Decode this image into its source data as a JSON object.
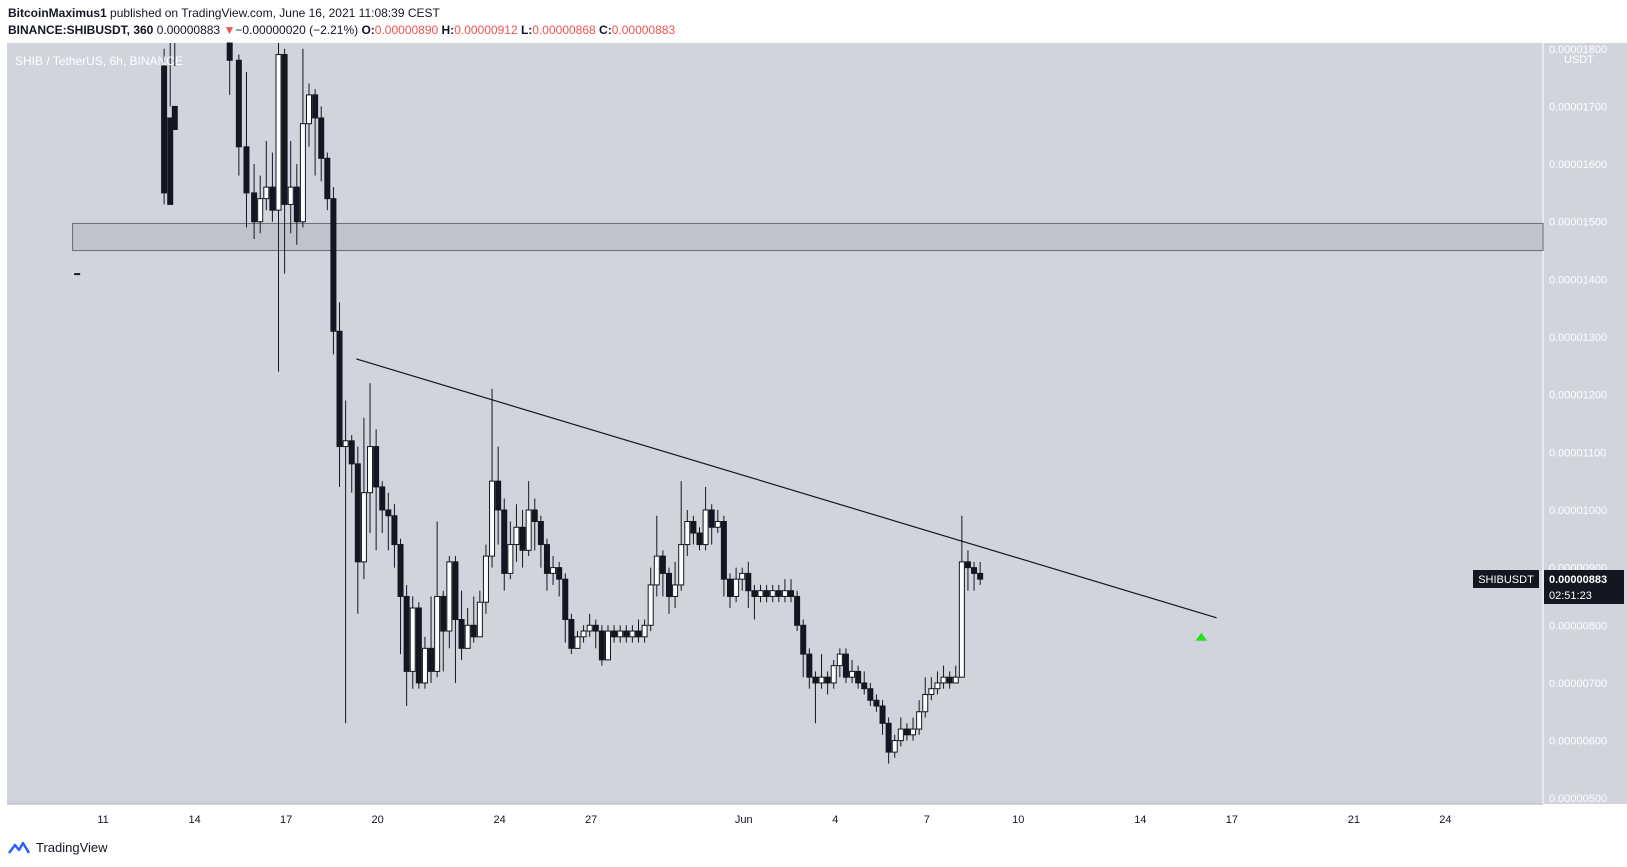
{
  "header": {
    "author": "BitcoinMaximus1",
    "published_text": "published on TradingView.com, June 16, 2021 11:08:39 CEST",
    "symbol": "BINANCE:SHIBUSDT, 360",
    "last": "0.00000883",
    "change_arrow": "▼",
    "change": "−0.00000020 (−2.21%)",
    "o_label": "O:",
    "o": "0.00000890",
    "h_label": "H:",
    "h": "0.00000912",
    "l_label": "L:",
    "l": "0.00000868",
    "c_label": "C:",
    "c": "0.00000883"
  },
  "footer": {
    "brand": "TradingView",
    "logo_icon": "tradingview-logo-icon"
  },
  "colors": {
    "background": "#d1d4dc",
    "bull": "#ffffff",
    "bear": "#131722",
    "arrow": "#26e01e",
    "accent_red": "#ef5350"
  },
  "chart_data": {
    "type": "candlestick",
    "title": "SHIB / TetherUS, 6h, BINANCE",
    "axis_unit": "USDT",
    "ylim": [
      4.9e-06,
      1.81e-05
    ],
    "y_ticks": [
      "0.00000500",
      "0.00000600",
      "0.00000700",
      "0.00000800",
      "0.00000900",
      "0.00001000",
      "0.00001100",
      "0.00001200",
      "0.00001300",
      "0.00001400",
      "0.00001500",
      "0.00001600",
      "0.00001700",
      "0.00001800"
    ],
    "x_ticks": [
      {
        "label": "11",
        "day": 11
      },
      {
        "label": "14",
        "day": 14
      },
      {
        "label": "17",
        "day": 17
      },
      {
        "label": "20",
        "day": 20
      },
      {
        "label": "24",
        "day": 24
      },
      {
        "label": "27",
        "day": 27
      },
      {
        "label": "Jun",
        "day": 32
      },
      {
        "label": "4",
        "day": 35
      },
      {
        "label": "7",
        "day": 38
      },
      {
        "label": "10",
        "day": 41
      },
      {
        "label": "14",
        "day": 45
      },
      {
        "label": "17",
        "day": 48
      },
      {
        "label": "21",
        "day": 52
      },
      {
        "label": "24",
        "day": 55
      }
    ],
    "xlim_days": [
      7.85,
      58.2
    ],
    "day_origin": "2021-05-01",
    "last_price_label": {
      "symbol": "SHIBUSDT",
      "price": "0.00000883",
      "countdown": "02:51:23"
    },
    "resistance_zone": [
      1.45e-05,
      1.497e-05
    ],
    "trendline": [
      [
        19.3,
        1.262e-05
      ],
      [
        47.5,
        8.13e-06
      ]
    ],
    "buy_arrow": [
      47.0,
      7.8e-06
    ],
    "candles": [
      [
        10.15,
        1.41e-05,
        1.41e-05,
        1.87e-05,
        1.87e-05
      ],
      [
        13.0,
        1.77e-05,
        1.55e-05,
        1.8e-05,
        1.53e-05
      ],
      [
        13.2,
        1.68e-05,
        1.53e-05,
        1.82e-05,
        1.7e-05
      ],
      [
        13.35,
        1.7e-05,
        1.66e-05,
        1.82e-05,
        1.77e-05
      ],
      [
        15.15,
        1.82e-05,
        1.78e-05,
        1.85e-05,
        1.72e-05
      ],
      [
        15.45,
        1.78e-05,
        1.63e-05,
        1.79e-05,
        1.58e-05
      ],
      [
        15.7,
        1.63e-05,
        1.55e-05,
        1.76e-05,
        1.49e-05
      ],
      [
        15.95,
        1.55e-05,
        1.5e-05,
        1.6e-05,
        1.47e-05
      ],
      [
        16.15,
        1.5e-05,
        1.54e-05,
        1.58e-05,
        1.48e-05
      ],
      [
        16.35,
        1.54e-05,
        1.56e-05,
        1.64e-05,
        1.52e-05
      ],
      [
        16.55,
        1.56e-05,
        1.52e-05,
        1.62e-05,
        1.5e-05
      ],
      [
        16.75,
        1.52e-05,
        1.79e-05,
        1.82e-05,
        1.24e-05
      ],
      [
        16.95,
        1.79e-05,
        1.53e-05,
        1.8e-05,
        1.41e-05
      ],
      [
        17.15,
        1.53e-05,
        1.56e-05,
        1.64e-05,
        1.48e-05
      ],
      [
        17.35,
        1.56e-05,
        1.5e-05,
        1.6e-05,
        1.46e-05
      ],
      [
        17.55,
        1.5e-05,
        1.67e-05,
        1.8e-05,
        1.49e-05
      ],
      [
        17.75,
        1.67e-05,
        1.72e-05,
        1.74e-05,
        1.63e-05
      ],
      [
        17.95,
        1.72e-05,
        1.68e-05,
        1.73e-05,
        1.58e-05
      ],
      [
        18.15,
        1.68e-05,
        1.61e-05,
        1.7e-05,
        1.57e-05
      ],
      [
        18.35,
        1.61e-05,
        1.54e-05,
        1.62e-05,
        1.52e-05
      ],
      [
        18.55,
        1.54e-05,
        1.31e-05,
        1.56e-05,
        1.27e-05
      ],
      [
        18.75,
        1.31e-05,
        1.11e-05,
        1.36e-05,
        1.04e-05
      ],
      [
        18.95,
        1.11e-05,
        1.12e-05,
        1.19e-05,
        6.3e-06
      ],
      [
        19.15,
        1.12e-05,
        1.08e-05,
        1.13e-05,
        1.03e-05
      ],
      [
        19.35,
        1.08e-05,
        9.1e-06,
        1.11e-05,
        8.2e-06
      ],
      [
        19.55,
        9.1e-06,
        1.03e-05,
        1.16e-05,
        8.8e-06
      ],
      [
        19.75,
        1.03e-05,
        1.11e-05,
        1.22e-05,
        9.6e-06
      ],
      [
        19.95,
        1.11e-05,
        1.04e-05,
        1.14e-05,
        9.3e-06
      ],
      [
        20.15,
        1.04e-05,
        1e-05,
        1.05e-05,
        9.6e-06
      ],
      [
        20.35,
        1e-05,
        9.9e-06,
        1.03e-05,
        9.3e-06
      ],
      [
        20.55,
        9.9e-06,
        9.4e-06,
        1.01e-05,
        9e-06
      ],
      [
        20.75,
        9.4e-06,
        8.5e-06,
        9.5e-06,
        7.5e-06
      ],
      [
        20.95,
        8.5e-06,
        7.2e-06,
        8.7e-06,
        6.6e-06
      ],
      [
        21.15,
        7.2e-06,
        8.3e-06,
        8.5e-06,
        6.9e-06
      ],
      [
        21.35,
        8.3e-06,
        7e-06,
        8.4e-06,
        6.9e-06
      ],
      [
        21.55,
        7e-06,
        7.6e-06,
        7.8e-06,
        6.9e-06
      ],
      [
        21.75,
        7.6e-06,
        7.2e-06,
        8.5e-06,
        7e-06
      ],
      [
        21.95,
        7.2e-06,
        8.5e-06,
        9.8e-06,
        7.1e-06
      ],
      [
        22.15,
        8.5e-06,
        7.9e-06,
        8.6e-06,
        7.2e-06
      ],
      [
        22.35,
        7.9e-06,
        9.1e-06,
        9.2e-06,
        7.6e-06
      ],
      [
        22.55,
        9.1e-06,
        8.1e-06,
        9.2e-06,
        7e-06
      ],
      [
        22.75,
        8.1e-06,
        7.6e-06,
        8.6e-06,
        7.4e-06
      ],
      [
        22.95,
        7.6e-06,
        8e-06,
        8.3e-06,
        7.8e-06
      ],
      [
        23.15,
        8e-06,
        7.8e-06,
        8.5e-06,
        7.7e-06
      ],
      [
        23.35,
        7.8e-06,
        8.4e-06,
        8.6e-06,
        7.8e-06
      ],
      [
        23.55,
        8.4e-06,
        9.2e-06,
        9.4e-06,
        8.2e-06
      ],
      [
        23.75,
        9.2e-06,
        1.05e-05,
        1.21e-05,
        9e-06
      ],
      [
        23.95,
        1.05e-05,
        1e-05,
        1.11e-05,
        9.4e-06
      ],
      [
        24.15,
        1e-05,
        8.9e-06,
        1.02e-05,
        8.6e-06
      ],
      [
        24.35,
        8.9e-06,
        9.4e-06,
        9.8e-06,
        8.8e-06
      ],
      [
        24.55,
        9.4e-06,
        9.7e-06,
        1.01e-05,
        9.1e-06
      ],
      [
        24.75,
        9.7e-06,
        9.3e-06,
        1e-05,
        9e-06
      ],
      [
        24.95,
        9.3e-06,
        1e-05,
        1.05e-05,
        9.2e-06
      ],
      [
        25.15,
        1e-05,
        9.8e-06,
        1.02e-05,
        9.3e-06
      ],
      [
        25.35,
        9.8e-06,
        9.4e-06,
        9.9e-06,
        9e-06
      ],
      [
        25.55,
        9.4e-06,
        8.9e-06,
        9.5e-06,
        8.6e-06
      ],
      [
        25.75,
        8.9e-06,
        9e-06,
        9.2e-06,
        8.7e-06
      ],
      [
        25.95,
        9e-06,
        8.8e-06,
        9.1e-06,
        8.5e-06
      ],
      [
        26.15,
        8.8e-06,
        8.1e-06,
        8.9e-06,
        7.7e-06
      ],
      [
        26.35,
        8.1e-06,
        7.6e-06,
        8.2e-06,
        7.5e-06
      ],
      [
        26.55,
        7.6e-06,
        7.8e-06,
        7.9e-06,
        7.6e-06
      ],
      [
        26.75,
        7.8e-06,
        7.9e-06,
        8e-06,
        7.7e-06
      ],
      [
        26.95,
        7.9e-06,
        8e-06,
        8.2e-06,
        7.8e-06
      ],
      [
        27.15,
        8e-06,
        7.9e-06,
        8.1e-06,
        7.6e-06
      ],
      [
        27.35,
        7.9e-06,
        7.4e-06,
        8e-06,
        7.3e-06
      ],
      [
        27.55,
        7.4e-06,
        7.9e-06,
        8e-06,
        7.4e-06
      ],
      [
        27.75,
        7.9e-06,
        7.8e-06,
        8e-06,
        7.7e-06
      ],
      [
        27.95,
        7.8e-06,
        7.9e-06,
        8e-06,
        7.7e-06
      ],
      [
        28.15,
        7.9e-06,
        7.8e-06,
        8e-06,
        7.7e-06
      ],
      [
        28.35,
        7.8e-06,
        7.9e-06,
        8e-06,
        7.7e-06
      ],
      [
        28.55,
        7.9e-06,
        7.8e-06,
        8.1e-06,
        7.7e-06
      ],
      [
        28.75,
        7.8e-06,
        8e-06,
        8.1e-06,
        7.7e-06
      ],
      [
        28.95,
        8e-06,
        8.7e-06,
        9e-06,
        7.9e-06
      ],
      [
        29.15,
        8.7e-06,
        9.2e-06,
        9.9e-06,
        8.5e-06
      ],
      [
        29.35,
        9.2e-06,
        8.9e-06,
        9.3e-06,
        8.5e-06
      ],
      [
        29.55,
        8.9e-06,
        8.5e-06,
        9e-06,
        8.2e-06
      ],
      [
        29.75,
        8.5e-06,
        8.7e-06,
        9.1e-06,
        8.3e-06
      ],
      [
        29.95,
        8.7e-06,
        9.4e-06,
        1.05e-05,
        8.6e-06
      ],
      [
        30.15,
        9.4e-06,
        9.8e-06,
        1e-05,
        9.2e-06
      ],
      [
        30.35,
        9.8e-06,
        9.6e-06,
        9.9e-06,
        9.4e-06
      ],
      [
        30.55,
        9.6e-06,
        9.4e-06,
        9.7e-06,
        9.3e-06
      ],
      [
        30.75,
        9.4e-06,
        1e-05,
        1.04e-05,
        9.3e-06
      ],
      [
        30.95,
        1e-05,
        9.7e-06,
        1.01e-05,
        9.4e-06
      ],
      [
        31.15,
        9.7e-06,
        9.8e-06,
        1e-05,
        9.6e-06
      ],
      [
        31.35,
        9.8e-06,
        8.8e-06,
        9.9e-06,
        8.5e-06
      ],
      [
        31.55,
        8.8e-06,
        8.5e-06,
        8.9e-06,
        8.3e-06
      ],
      [
        31.75,
        8.5e-06,
        8.8e-06,
        9e-06,
        8.4e-06
      ],
      [
        31.95,
        8.8e-06,
        8.9e-06,
        9e-06,
        8.6e-06
      ],
      [
        32.15,
        8.9e-06,
        8.6e-06,
        9.1e-06,
        8.3e-06
      ],
      [
        32.35,
        8.6e-06,
        8.5e-06,
        8.7e-06,
        8.1e-06
      ],
      [
        32.55,
        8.5e-06,
        8.6e-06,
        8.7e-06,
        8.4e-06
      ],
      [
        32.75,
        8.6e-06,
        8.5e-06,
        8.7e-06,
        8.4e-06
      ],
      [
        32.95,
        8.5e-06,
        8.6e-06,
        8.7e-06,
        8.4e-06
      ],
      [
        33.15,
        8.6e-06,
        8.5e-06,
        8.7e-06,
        8.4e-06
      ],
      [
        33.35,
        8.5e-06,
        8.6e-06,
        8.8e-06,
        8.4e-06
      ],
      [
        33.55,
        8.6e-06,
        8.5e-06,
        8.8e-06,
        8.4e-06
      ],
      [
        33.75,
        8.5e-06,
        8e-06,
        8.6e-06,
        7.9e-06
      ],
      [
        33.95,
        8e-06,
        7.5e-06,
        8.1e-06,
        7.1e-06
      ],
      [
        34.15,
        7.5e-06,
        7.1e-06,
        7.6e-06,
        6.9e-06
      ],
      [
        34.35,
        7.1e-06,
        7e-06,
        7.2e-06,
        6.3e-06
      ],
      [
        34.55,
        7e-06,
        7.1e-06,
        7.5e-06,
        6.9e-06
      ],
      [
        34.75,
        7.1e-06,
        7e-06,
        7.2e-06,
        6.8e-06
      ],
      [
        34.95,
        7e-06,
        7.3e-06,
        7.4e-06,
        6.9e-06
      ],
      [
        35.15,
        7.3e-06,
        7.5e-06,
        7.6e-06,
        7.1e-06
      ],
      [
        35.35,
        7.5e-06,
        7.1e-06,
        7.6e-06,
        7e-06
      ],
      [
        35.55,
        7.1e-06,
        7.2e-06,
        7.4e-06,
        7e-06
      ],
      [
        35.75,
        7.2e-06,
        7e-06,
        7.3e-06,
        6.9e-06
      ],
      [
        35.95,
        7e-06,
        6.9e-06,
        7.2e-06,
        6.8e-06
      ],
      [
        36.15,
        6.9e-06,
        6.7e-06,
        7e-06,
        6.6e-06
      ],
      [
        36.35,
        6.7e-06,
        6.6e-06,
        6.8e-06,
        6.5e-06
      ],
      [
        36.55,
        6.6e-06,
        6.3e-06,
        6.7e-06,
        6.1e-06
      ],
      [
        36.75,
        6.3e-06,
        5.8e-06,
        6.4e-06,
        5.6e-06
      ],
      [
        36.95,
        5.8e-06,
        6e-06,
        6.1e-06,
        5.7e-06
      ],
      [
        37.15,
        6e-06,
        6.2e-06,
        6.4e-06,
        5.9e-06
      ],
      [
        37.35,
        6.2e-06,
        6.1e-06,
        6.3e-06,
        6e-06
      ],
      [
        37.55,
        6.1e-06,
        6.2e-06,
        6.4e-06,
        6e-06
      ],
      [
        37.75,
        6.2e-06,
        6.5e-06,
        6.7e-06,
        6.1e-06
      ],
      [
        37.95,
        6.5e-06,
        6.8e-06,
        7.1e-06,
        6.4e-06
      ],
      [
        38.15,
        6.8e-06,
        6.9e-06,
        7.1e-06,
        6.7e-06
      ],
      [
        38.35,
        6.9e-06,
        7e-06,
        7.2e-06,
        6.8e-06
      ],
      [
        38.55,
        7e-06,
        7.1e-06,
        7.3e-06,
        6.9e-06
      ],
      [
        38.75,
        7.1e-06,
        7e-06,
        7.2e-06,
        6.9e-06
      ],
      [
        38.95,
        7e-06,
        7.1e-06,
        7.3e-06,
        7e-06
      ],
      [
        39.15,
        7.1e-06,
        9.1e-06,
        9.9e-06,
        7.1e-06
      ],
      [
        39.35,
        9.1e-06,
        9e-06,
        9.3e-06,
        8.6e-06
      ],
      [
        39.55,
        9e-06,
        8.9e-06,
        9.1e-06,
        8.6e-06
      ],
      [
        39.75,
        8.9e-06,
        8.8e-06,
        9.1e-06,
        8.7e-06
      ]
    ]
  }
}
